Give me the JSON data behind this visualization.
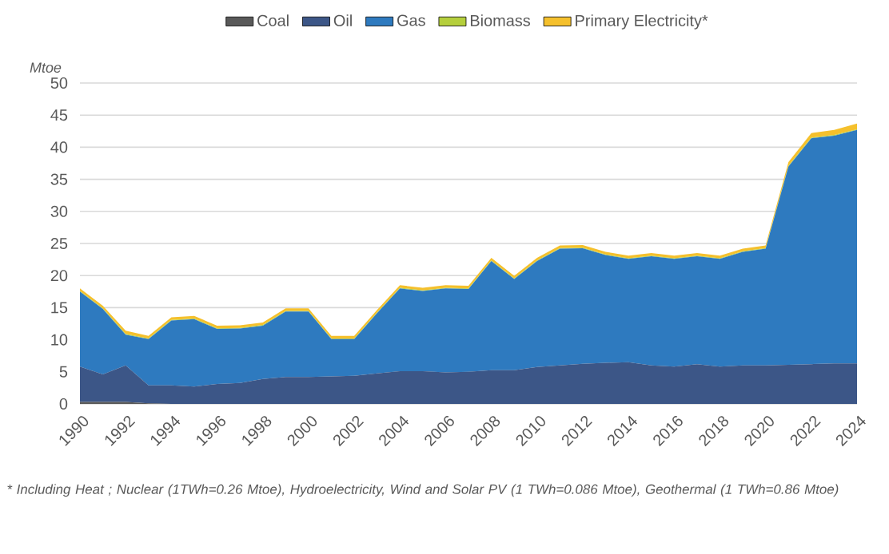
{
  "chart_data": {
    "type": "area",
    "stacked": true,
    "ylabel": "Mtoe",
    "legend": "top",
    "grid": "y",
    "x": [
      1990,
      1991,
      1992,
      1993,
      1994,
      1995,
      1996,
      1997,
      1998,
      1999,
      2000,
      2001,
      2002,
      2003,
      2004,
      2005,
      2006,
      2007,
      2008,
      2009,
      2010,
      2011,
      2012,
      2013,
      2014,
      2015,
      2016,
      2017,
      2018,
      2019,
      2020,
      2021,
      2022,
      2023,
      2024
    ],
    "xlim": [
      1990,
      2024
    ],
    "xticks": [
      1990,
      1992,
      1994,
      1996,
      1998,
      2000,
      2002,
      2004,
      2006,
      2008,
      2010,
      2012,
      2014,
      2016,
      2018,
      2020,
      2022,
      2024
    ],
    "ylim": [
      0,
      50
    ],
    "yticks": [
      0,
      5,
      10,
      15,
      20,
      25,
      30,
      35,
      40,
      45,
      50
    ],
    "series": [
      {
        "name": "Coal",
        "color": "#595959",
        "values": [
          0.3,
          0.3,
          0.3,
          0.1,
          0,
          0,
          0,
          0,
          0,
          0,
          0,
          0,
          0,
          0,
          0,
          0,
          0,
          0,
          0,
          0,
          0,
          0,
          0,
          0,
          0,
          0,
          0,
          0,
          0,
          0,
          0,
          0,
          0,
          0,
          0
        ]
      },
      {
        "name": "Oil",
        "color": "#3c5687",
        "values": [
          5.5,
          4.3,
          5.7,
          2.8,
          2.9,
          2.7,
          3.1,
          3.25,
          3.9,
          4.2,
          4.2,
          4.3,
          4.4,
          4.75,
          5.1,
          5.1,
          4.9,
          5.0,
          5.25,
          5.25,
          5.75,
          6.0,
          6.25,
          6.4,
          6.5,
          6.0,
          5.8,
          6.2,
          5.8,
          6.0,
          6.0,
          6.1,
          6.2,
          6.3,
          6.3
        ]
      },
      {
        "name": "Gas",
        "color": "#2e7abf",
        "values": [
          11.7,
          10.2,
          4.8,
          7.2,
          10.1,
          10.5,
          8.6,
          8.5,
          8.3,
          10.2,
          10.2,
          5.8,
          5.7,
          9.4,
          12.9,
          12.5,
          13.1,
          12.9,
          17.0,
          14.2,
          16.5,
          18.2,
          18.0,
          16.8,
          16.1,
          17.0,
          16.8,
          16.8,
          16.8,
          17.7,
          18.2,
          30.9,
          35.2,
          35.5,
          36.4
        ]
      },
      {
        "name": "Biomass",
        "color": "#b5cf3c",
        "values": [
          0.1,
          0.1,
          0.1,
          0.1,
          0.1,
          0.1,
          0.1,
          0.1,
          0.1,
          0.1,
          0.1,
          0.1,
          0.1,
          0.1,
          0.1,
          0.1,
          0.1,
          0.1,
          0.1,
          0.1,
          0.1,
          0.1,
          0.1,
          0.1,
          0.1,
          0.1,
          0.1,
          0.1,
          0.1,
          0.1,
          0.1,
          0.1,
          0.1,
          0.1,
          0.1
        ]
      },
      {
        "name": "Primary Electricity*",
        "color": "#f5c02c",
        "values": [
          0.4,
          0.4,
          0.5,
          0.4,
          0.4,
          0.4,
          0.4,
          0.4,
          0.4,
          0.4,
          0.4,
          0.4,
          0.4,
          0.4,
          0.4,
          0.4,
          0.4,
          0.4,
          0.4,
          0.4,
          0.4,
          0.4,
          0.4,
          0.4,
          0.4,
          0.4,
          0.4,
          0.4,
          0.4,
          0.4,
          0.4,
          0.6,
          0.7,
          0.8,
          0.9
        ]
      }
    ],
    "annotations": [
      "* Including Heat ; Nuclear (1TWh=0.26 Mtoe), Hydroelectricity, Wind and Solar PV (1  TWh=0.086 Mtoe), Geothermal (1 TWh=0.86 Mtoe)"
    ]
  }
}
